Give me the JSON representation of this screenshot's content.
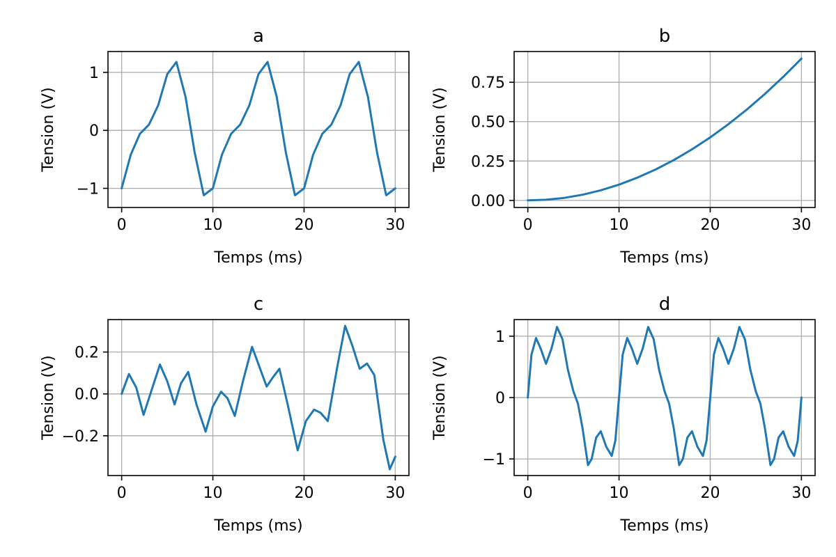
{
  "chart_data": [
    {
      "type": "line",
      "title": "a",
      "xlabel": "Temps (ms)",
      "ylabel": "Tension (V)",
      "xlim": [
        -1.5,
        31.5
      ],
      "ylim": [
        -1.33,
        1.36
      ],
      "xticks": [
        0,
        10,
        20,
        30
      ],
      "xtick_labels": [
        "0",
        "10",
        "20",
        "30"
      ],
      "yticks": [
        -1,
        0,
        1
      ],
      "ytick_labels": [
        "−1",
        "0",
        "1"
      ],
      "grid": true,
      "color": "#1f77b4",
      "series": [
        {
          "x": [
            0,
            1,
            2,
            3,
            4,
            5,
            6,
            7,
            8,
            9,
            10,
            11,
            12,
            13,
            14,
            15,
            16,
            17,
            18,
            19,
            20,
            21,
            22,
            23,
            24,
            25,
            26,
            27,
            28,
            29,
            30
          ],
          "values": [
            -1.0,
            -0.42,
            -0.06,
            0.1,
            0.43,
            0.97,
            1.18,
            0.58,
            -0.38,
            -1.12,
            -1.0,
            -0.42,
            -0.06,
            0.1,
            0.43,
            0.97,
            1.18,
            0.58,
            -0.38,
            -1.12,
            -1.0,
            -0.42,
            -0.06,
            0.1,
            0.43,
            0.97,
            1.18,
            0.58,
            -0.38,
            -1.12,
            -1.0
          ]
        }
      ]
    },
    {
      "type": "line",
      "title": "b",
      "xlabel": "Temps (ms)",
      "ylabel": "Tension (V)",
      "xlim": [
        -1.5,
        31.5
      ],
      "ylim": [
        -0.045,
        0.945
      ],
      "xticks": [
        0,
        10,
        20,
        30
      ],
      "xtick_labels": [
        "0",
        "10",
        "20",
        "30"
      ],
      "yticks": [
        0,
        0.25,
        0.5,
        0.75
      ],
      "ytick_labels": [
        "0.00",
        "0.25",
        "0.50",
        "0.75"
      ],
      "grid": true,
      "color": "#1f77b4",
      "series": [
        {
          "x": [
            0,
            2,
            4,
            6,
            8,
            10,
            12,
            14,
            16,
            18,
            20,
            22,
            24,
            26,
            28,
            30
          ],
          "values": [
            0.0,
            0.004,
            0.016,
            0.036,
            0.064,
            0.1,
            0.144,
            0.196,
            0.256,
            0.324,
            0.4,
            0.484,
            0.576,
            0.676,
            0.784,
            0.9
          ]
        }
      ]
    },
    {
      "type": "line",
      "title": "c",
      "xlabel": "Temps (ms)",
      "ylabel": "Tension (V)",
      "xlim": [
        -1.5,
        31.5
      ],
      "ylim": [
        -0.39,
        0.355
      ],
      "xticks": [
        0,
        10,
        20,
        30
      ],
      "xtick_labels": [
        "0",
        "10",
        "20",
        "30"
      ],
      "yticks": [
        -0.2,
        0,
        0.2
      ],
      "ytick_labels": [
        "−0.2",
        "0.0",
        "0.2"
      ],
      "grid": true,
      "color": "#1f77b4",
      "series": [
        {
          "x": [
            0,
            0.8,
            1.6,
            2.4,
            3.3,
            4.2,
            5.0,
            5.8,
            6.5,
            7.3,
            8.2,
            9.2,
            10.0,
            10.9,
            11.6,
            12.4,
            13.3,
            14.3,
            15.1,
            15.9,
            16.6,
            17.3,
            18.2,
            19.3,
            20.2,
            21.1,
            21.8,
            22.6,
            23.6,
            24.5,
            25.3,
            26.1,
            26.9,
            27.7,
            28.7,
            29.4,
            30.0
          ],
          "values": [
            0.0,
            0.095,
            0.03,
            -0.1,
            0.02,
            0.14,
            0.06,
            -0.05,
            0.05,
            0.105,
            -0.05,
            -0.18,
            -0.06,
            0.01,
            -0.02,
            -0.105,
            0.06,
            0.225,
            0.13,
            0.035,
            0.08,
            0.12,
            -0.05,
            -0.27,
            -0.13,
            -0.075,
            -0.09,
            -0.13,
            0.12,
            0.325,
            0.23,
            0.12,
            0.145,
            0.09,
            -0.22,
            -0.36,
            -0.3
          ]
        }
      ]
    },
    {
      "type": "line",
      "title": "d",
      "xlabel": "Temps (ms)",
      "ylabel": "Tension (V)",
      "xlim": [
        -1.5,
        31.5
      ],
      "ylim": [
        -1.27,
        1.27
      ],
      "xticks": [
        0,
        10,
        20,
        30
      ],
      "xtick_labels": [
        "0",
        "10",
        "20",
        "30"
      ],
      "yticks": [
        -1,
        0,
        1
      ],
      "ytick_labels": [
        "−1",
        "0",
        "1"
      ],
      "grid": true,
      "color": "#1f77b4",
      "series": [
        {
          "x": [
            0,
            0.4,
            0.9,
            1.4,
            2.0,
            2.6,
            3.2,
            3.8,
            4.4,
            5.0,
            5.5,
            6.0,
            6.6,
            7.0,
            7.5,
            8.0,
            8.6,
            9.2,
            9.6,
            10.0,
            10.4,
            10.9,
            11.4,
            12.0,
            12.6,
            13.2,
            13.8,
            14.4,
            15.0,
            15.5,
            16.0,
            16.6,
            17.0,
            17.5,
            18.0,
            18.6,
            19.2,
            19.6,
            20.0,
            20.4,
            20.9,
            21.4,
            22.0,
            22.6,
            23.2,
            23.8,
            24.4,
            25.0,
            25.5,
            26.0,
            26.6,
            27.0,
            27.5,
            28.0,
            28.6,
            29.2,
            29.6,
            30.0
          ],
          "values": [
            0.0,
            0.7,
            0.97,
            0.8,
            0.55,
            0.8,
            1.15,
            0.95,
            0.45,
            0.1,
            -0.1,
            -0.5,
            -1.1,
            -1.0,
            -0.65,
            -0.55,
            -0.8,
            -0.95,
            -0.7,
            0.0,
            0.7,
            0.97,
            0.8,
            0.55,
            0.8,
            1.15,
            0.95,
            0.45,
            0.1,
            -0.1,
            -0.5,
            -1.1,
            -1.0,
            -0.65,
            -0.55,
            -0.8,
            -0.95,
            -0.7,
            0.0,
            0.7,
            0.97,
            0.8,
            0.55,
            0.8,
            1.15,
            0.95,
            0.45,
            0.1,
            -0.1,
            -0.5,
            -1.1,
            -1.0,
            -0.65,
            -0.55,
            -0.8,
            -0.95,
            -0.7,
            0.0
          ]
        }
      ]
    }
  ]
}
